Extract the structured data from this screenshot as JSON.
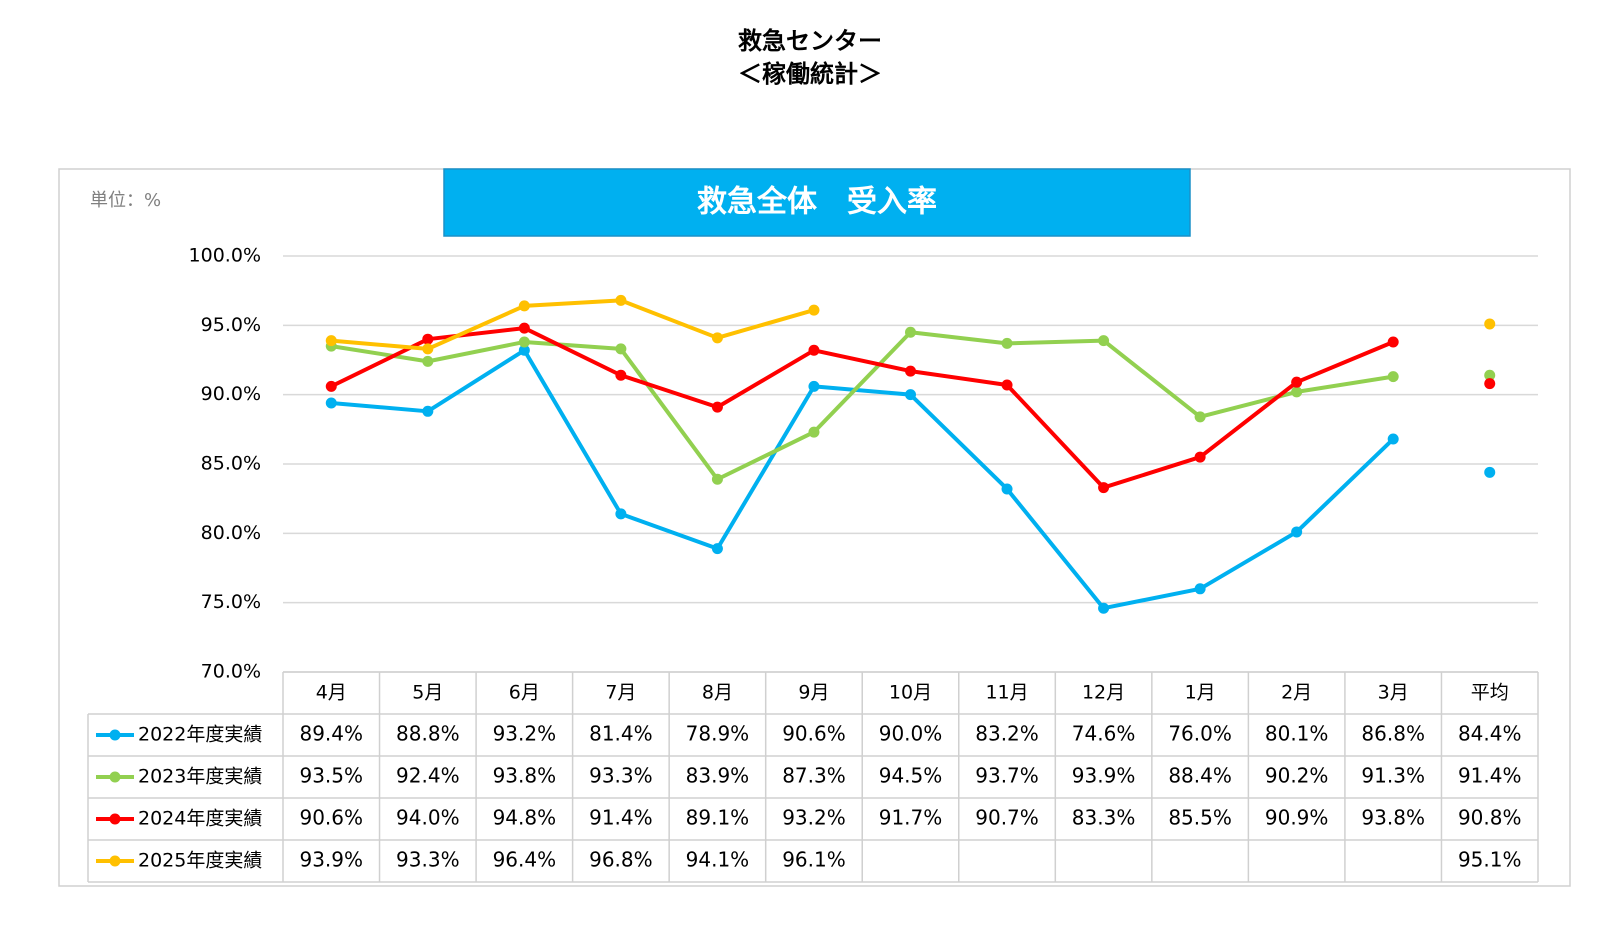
{
  "chart_data": {
    "type": "line",
    "title": "救急センター",
    "subtitle": "＜稼働統計＞",
    "chart_title": "救急全体　受入率",
    "unit_label": "単位：%",
    "categories": [
      "4月",
      "5月",
      "6月",
      "7月",
      "8月",
      "9月",
      "10月",
      "11月",
      "12月",
      "1月",
      "2月",
      "3月",
      "平均"
    ],
    "ylim": [
      70,
      100
    ],
    "yticks": [
      {
        "value": 70,
        "label": "70.0%"
      },
      {
        "value": 75,
        "label": "75.0%"
      },
      {
        "value": 80,
        "label": "80.0%"
      },
      {
        "value": 85,
        "label": "85.0%"
      },
      {
        "value": 90,
        "label": "90.0%"
      },
      {
        "value": 95,
        "label": "95.0%"
      },
      {
        "value": 100,
        "label": "100.0%"
      }
    ],
    "grid": true,
    "series": [
      {
        "name": "2022年度実績",
        "color": "#00b0f0",
        "values": [
          89.4,
          88.8,
          93.2,
          81.4,
          78.9,
          90.6,
          90.0,
          83.2,
          74.6,
          76.0,
          80.1,
          86.8,
          84.4
        ],
        "value_labels": [
          "89.4%",
          "88.8%",
          "93.2%",
          "81.4%",
          "78.9%",
          "90.6%",
          "90.0%",
          "83.2%",
          "74.6%",
          "76.0%",
          "80.1%",
          "86.8%",
          "84.4%"
        ]
      },
      {
        "name": "2023年度実績",
        "color": "#92d050",
        "values": [
          93.5,
          92.4,
          93.8,
          93.3,
          83.9,
          87.3,
          94.5,
          93.7,
          93.9,
          88.4,
          90.2,
          91.3,
          91.4
        ],
        "value_labels": [
          "93.5%",
          "92.4%",
          "93.8%",
          "93.3%",
          "83.9%",
          "87.3%",
          "94.5%",
          "93.7%",
          "93.9%",
          "88.4%",
          "90.2%",
          "91.3%",
          "91.4%"
        ]
      },
      {
        "name": "2024年度実績",
        "color": "#ff0000",
        "values": [
          90.6,
          94.0,
          94.8,
          91.4,
          89.1,
          93.2,
          91.7,
          90.7,
          83.3,
          85.5,
          90.9,
          93.8,
          90.8
        ],
        "value_labels": [
          "90.6%",
          "94.0%",
          "94.8%",
          "91.4%",
          "89.1%",
          "93.2%",
          "91.7%",
          "90.7%",
          "83.3%",
          "85.5%",
          "90.9%",
          "93.8%",
          "90.8%"
        ]
      },
      {
        "name": "2025年度実績",
        "color": "#ffc000",
        "values": [
          93.9,
          93.3,
          96.4,
          96.8,
          94.1,
          96.1,
          null,
          null,
          null,
          null,
          null,
          null,
          95.1
        ],
        "value_labels": [
          "93.9%",
          "93.3%",
          "96.4%",
          "96.8%",
          "94.1%",
          "96.1%",
          null,
          null,
          null,
          null,
          null,
          null,
          "95.1%"
        ]
      }
    ]
  }
}
